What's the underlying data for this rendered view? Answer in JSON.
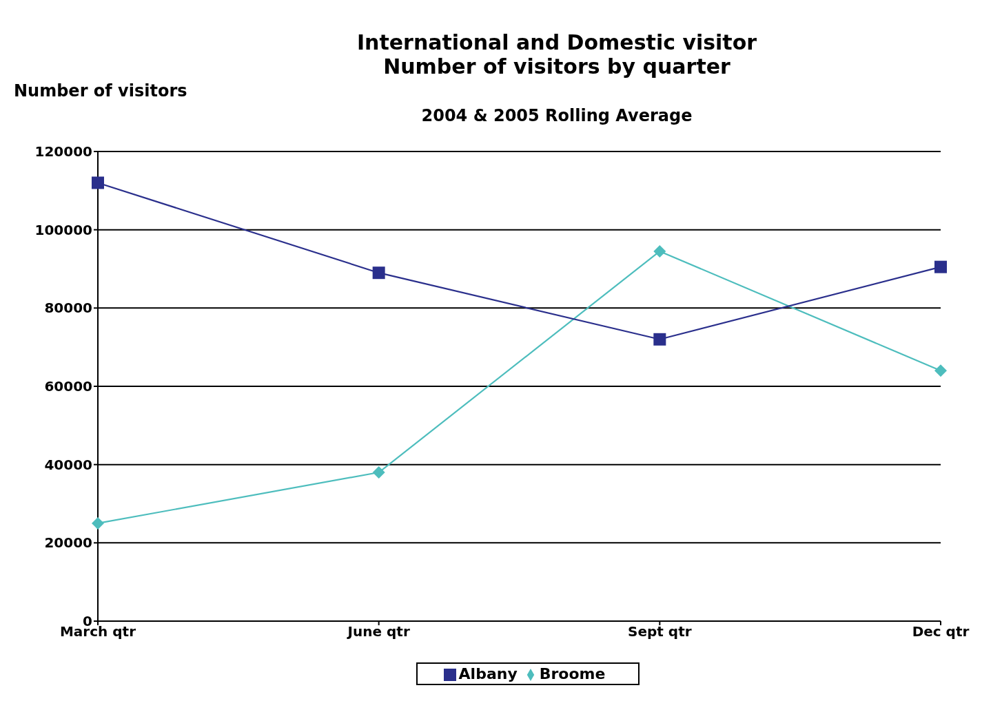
{
  "chart_data": {
    "type": "line",
    "title": "International and Domestic visitor\nNumber of visitors by quarter",
    "subtitle": "2004 & 2005 Rolling Average",
    "ylabel": "Number of visitors",
    "categories": [
      "March qtr",
      "June qtr",
      "Sept qtr",
      "Dec qtr"
    ],
    "series": [
      {
        "name": "Broome",
        "color": "#4dbdbd",
        "marker": "diamond",
        "values": [
          25000,
          38000,
          94500,
          64000
        ]
      },
      {
        "name": "Albany",
        "color": "#2a2f8c",
        "marker": "square",
        "values": [
          112000,
          89000,
          72000,
          90500
        ]
      }
    ],
    "ylim": [
      0,
      120000
    ],
    "yticks": [
      0,
      20000,
      40000,
      60000,
      80000,
      100000,
      120000
    ],
    "grid": "y",
    "legend": "bottom",
    "line_style": "solid"
  }
}
